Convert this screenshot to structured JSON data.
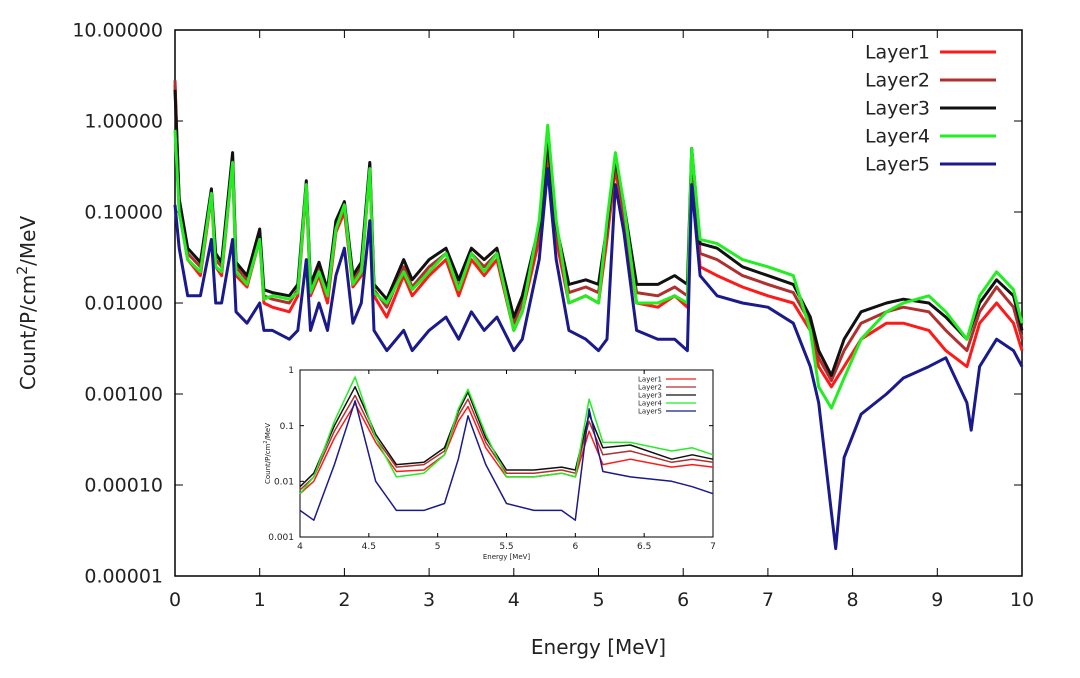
{
  "chart_data": [
    {
      "type": "line",
      "xlabel": "Energy [MeV]",
      "ylabel_main": "Count/P/cm",
      "ylabel_sup": "2",
      "ylabel_tail": "/MeV",
      "xlim": [
        0,
        10
      ],
      "ylim": [
        1e-05,
        10
      ],
      "yscale": "log",
      "xticks": [
        "0",
        "1",
        "2",
        "3",
        "4",
        "5",
        "6",
        "7",
        "8",
        "9",
        "10"
      ],
      "yticks": [
        "0.00001",
        "0.00010",
        "0.00100",
        "0.01000",
        "0.10000",
        "1.00000",
        "10.00000"
      ],
      "legend_position": "top-right",
      "grid": false,
      "series": [
        {
          "name": "Layer1",
          "color": "#ff1a1a",
          "x": [
            0,
            0.05,
            0.15,
            0.3,
            0.43,
            0.48,
            0.55,
            0.68,
            0.72,
            0.85,
            1.0,
            1.05,
            1.15,
            1.35,
            1.45,
            1.55,
            1.6,
            1.7,
            1.8,
            1.9,
            2.0,
            2.1,
            2.2,
            2.3,
            2.35,
            2.5,
            2.7,
            2.8,
            3.0,
            3.2,
            3.35,
            3.5,
            3.65,
            3.8,
            4.0,
            4.1,
            4.3,
            4.4,
            4.5,
            4.65,
            4.85,
            5.0,
            5.1,
            5.2,
            5.3,
            5.45,
            5.7,
            5.9,
            6.05,
            6.1,
            6.2,
            6.4,
            6.7,
            7.0,
            7.3,
            7.5,
            7.6,
            7.75,
            7.9,
            8.1,
            8.4,
            8.6,
            8.9,
            9.1,
            9.35,
            9.5,
            9.7,
            9.9,
            10.0
          ],
          "y": [
            2.5,
            0.1,
            0.03,
            0.02,
            0.15,
            0.025,
            0.02,
            0.35,
            0.02,
            0.015,
            0.05,
            0.01,
            0.009,
            0.008,
            0.012,
            0.18,
            0.012,
            0.02,
            0.01,
            0.06,
            0.1,
            0.015,
            0.02,
            0.3,
            0.012,
            0.007,
            0.02,
            0.012,
            0.02,
            0.03,
            0.012,
            0.03,
            0.02,
            0.03,
            0.005,
            0.008,
            0.05,
            0.45,
            0.05,
            0.01,
            0.012,
            0.01,
            0.05,
            0.3,
            0.08,
            0.01,
            0.009,
            0.012,
            0.009,
            0.3,
            0.025,
            0.02,
            0.015,
            0.012,
            0.01,
            0.005,
            0.002,
            0.0012,
            0.002,
            0.004,
            0.006,
            0.006,
            0.005,
            0.003,
            0.002,
            0.006,
            0.01,
            0.006,
            0.003
          ]
        },
        {
          "name": "Layer2",
          "color": "#b03030",
          "x": [
            0,
            0.05,
            0.15,
            0.3,
            0.43,
            0.48,
            0.55,
            0.68,
            0.72,
            0.85,
            1.0,
            1.05,
            1.15,
            1.35,
            1.45,
            1.55,
            1.6,
            1.7,
            1.8,
            1.9,
            2.0,
            2.1,
            2.2,
            2.3,
            2.35,
            2.5,
            2.7,
            2.8,
            3.0,
            3.2,
            3.35,
            3.5,
            3.65,
            3.8,
            4.0,
            4.1,
            4.3,
            4.4,
            4.5,
            4.65,
            4.85,
            5.0,
            5.1,
            5.2,
            5.3,
            5.45,
            5.7,
            5.9,
            6.05,
            6.1,
            6.2,
            6.4,
            6.7,
            7.0,
            7.3,
            7.5,
            7.6,
            7.75,
            7.9,
            8.1,
            8.4,
            8.6,
            8.9,
            9.1,
            9.35,
            9.5,
            9.7,
            9.9,
            10.0
          ],
          "y": [
            2.8,
            0.12,
            0.035,
            0.025,
            0.17,
            0.03,
            0.025,
            0.4,
            0.025,
            0.018,
            0.06,
            0.012,
            0.011,
            0.01,
            0.014,
            0.2,
            0.014,
            0.025,
            0.012,
            0.07,
            0.12,
            0.018,
            0.025,
            0.33,
            0.014,
            0.009,
            0.025,
            0.015,
            0.025,
            0.035,
            0.015,
            0.035,
            0.025,
            0.035,
            0.006,
            0.01,
            0.06,
            0.55,
            0.06,
            0.013,
            0.015,
            0.013,
            0.06,
            0.35,
            0.1,
            0.013,
            0.012,
            0.015,
            0.012,
            0.4,
            0.035,
            0.03,
            0.02,
            0.016,
            0.013,
            0.006,
            0.0025,
            0.0014,
            0.003,
            0.006,
            0.008,
            0.009,
            0.008,
            0.005,
            0.003,
            0.008,
            0.015,
            0.009,
            0.004
          ]
        },
        {
          "name": "Layer3",
          "color": "#111111",
          "x": [
            0,
            0.05,
            0.15,
            0.3,
            0.43,
            0.48,
            0.55,
            0.68,
            0.72,
            0.85,
            1.0,
            1.05,
            1.15,
            1.35,
            1.45,
            1.55,
            1.6,
            1.7,
            1.8,
            1.9,
            2.0,
            2.1,
            2.2,
            2.3,
            2.35,
            2.5,
            2.7,
            2.8,
            3.0,
            3.2,
            3.35,
            3.5,
            3.65,
            3.8,
            4.0,
            4.1,
            4.3,
            4.4,
            4.5,
            4.65,
            4.85,
            5.0,
            5.1,
            5.2,
            5.3,
            5.45,
            5.7,
            5.9,
            6.05,
            6.1,
            6.2,
            6.4,
            6.7,
            7.0,
            7.3,
            7.5,
            7.6,
            7.75,
            7.9,
            8.1,
            8.4,
            8.6,
            8.9,
            9.1,
            9.35,
            9.5,
            9.7,
            9.9,
            10.0
          ],
          "y": [
            2.2,
            0.14,
            0.04,
            0.028,
            0.18,
            0.035,
            0.028,
            0.45,
            0.028,
            0.02,
            0.065,
            0.014,
            0.013,
            0.012,
            0.016,
            0.22,
            0.016,
            0.028,
            0.014,
            0.08,
            0.13,
            0.02,
            0.028,
            0.35,
            0.016,
            0.011,
            0.03,
            0.018,
            0.03,
            0.04,
            0.018,
            0.04,
            0.03,
            0.04,
            0.007,
            0.012,
            0.07,
            0.65,
            0.07,
            0.016,
            0.018,
            0.016,
            0.07,
            0.4,
            0.12,
            0.016,
            0.016,
            0.02,
            0.016,
            0.5,
            0.045,
            0.04,
            0.025,
            0.02,
            0.016,
            0.007,
            0.003,
            0.0016,
            0.004,
            0.008,
            0.01,
            0.011,
            0.01,
            0.007,
            0.004,
            0.01,
            0.018,
            0.012,
            0.005
          ]
        },
        {
          "name": "Layer4",
          "color": "#22ee22",
          "x": [
            0,
            0.05,
            0.15,
            0.3,
            0.43,
            0.48,
            0.55,
            0.68,
            0.72,
            0.85,
            1.0,
            1.05,
            1.15,
            1.35,
            1.45,
            1.55,
            1.6,
            1.7,
            1.8,
            1.9,
            2.0,
            2.1,
            2.2,
            2.3,
            2.35,
            2.5,
            2.7,
            2.8,
            3.0,
            3.2,
            3.35,
            3.5,
            3.65,
            3.8,
            4.0,
            4.1,
            4.3,
            4.4,
            4.5,
            4.65,
            4.85,
            5.0,
            5.1,
            5.2,
            5.3,
            5.45,
            5.7,
            5.9,
            6.05,
            6.1,
            6.2,
            6.4,
            6.7,
            7.0,
            7.3,
            7.5,
            7.6,
            7.75,
            7.9,
            8.1,
            8.4,
            8.6,
            8.9,
            9.1,
            9.35,
            9.5,
            9.7,
            9.9,
            10.0
          ],
          "y": [
            0.8,
            0.1,
            0.03,
            0.022,
            0.16,
            0.025,
            0.022,
            0.35,
            0.022,
            0.016,
            0.05,
            0.011,
            0.012,
            0.011,
            0.013,
            0.2,
            0.013,
            0.022,
            0.012,
            0.065,
            0.12,
            0.016,
            0.022,
            0.3,
            0.013,
            0.01,
            0.022,
            0.014,
            0.022,
            0.035,
            0.014,
            0.035,
            0.022,
            0.035,
            0.005,
            0.008,
            0.08,
            0.9,
            0.08,
            0.01,
            0.012,
            0.01,
            0.08,
            0.45,
            0.12,
            0.01,
            0.01,
            0.012,
            0.01,
            0.5,
            0.05,
            0.045,
            0.03,
            0.025,
            0.02,
            0.005,
            0.0012,
            0.0007,
            0.0015,
            0.004,
            0.008,
            0.01,
            0.012,
            0.008,
            0.004,
            0.012,
            0.022,
            0.014,
            0.006
          ]
        },
        {
          "name": "Layer5",
          "color": "#1a1a8c",
          "x": [
            0,
            0.05,
            0.15,
            0.3,
            0.43,
            0.48,
            0.55,
            0.68,
            0.72,
            0.85,
            1.0,
            1.05,
            1.15,
            1.35,
            1.45,
            1.55,
            1.6,
            1.7,
            1.8,
            1.9,
            2.0,
            2.1,
            2.2,
            2.3,
            2.35,
            2.5,
            2.7,
            2.8,
            3.0,
            3.2,
            3.35,
            3.5,
            3.65,
            3.8,
            4.0,
            4.1,
            4.3,
            4.4,
            4.5,
            4.65,
            4.85,
            5.0,
            5.1,
            5.2,
            5.3,
            5.45,
            5.7,
            5.9,
            6.05,
            6.1,
            6.2,
            6.4,
            6.7,
            7.0,
            7.3,
            7.5,
            7.6,
            7.75,
            7.8,
            7.9,
            8.1,
            8.4,
            8.6,
            8.9,
            9.1,
            9.35,
            9.4,
            9.5,
            9.7,
            9.9,
            10.0
          ],
          "y": [
            0.12,
            0.04,
            0.012,
            0.012,
            0.05,
            0.01,
            0.01,
            0.05,
            0.008,
            0.006,
            0.01,
            0.005,
            0.005,
            0.004,
            0.005,
            0.03,
            0.005,
            0.01,
            0.005,
            0.02,
            0.04,
            0.006,
            0.01,
            0.08,
            0.005,
            0.003,
            0.005,
            0.003,
            0.005,
            0.007,
            0.004,
            0.008,
            0.005,
            0.007,
            0.003,
            0.004,
            0.03,
            0.3,
            0.03,
            0.005,
            0.004,
            0.003,
            0.004,
            0.2,
            0.06,
            0.005,
            0.004,
            0.004,
            0.003,
            0.2,
            0.02,
            0.012,
            0.01,
            0.009,
            0.006,
            0.002,
            0.0008,
            5e-05,
            2e-05,
            0.0002,
            0.0006,
            0.001,
            0.0015,
            0.002,
            0.0025,
            0.0008,
            0.0004,
            0.002,
            0.004,
            0.003,
            0.002
          ]
        }
      ]
    },
    {
      "type": "line",
      "xlabel": "Energy [MeV]",
      "ylabel_main": "Count/P/cm",
      "ylabel_sup": "2",
      "ylabel_tail": "/MeV",
      "xlim": [
        4,
        7
      ],
      "ylim": [
        0.001,
        1
      ],
      "yscale": "log",
      "xticks": [
        "4",
        "4.5",
        "5",
        "5.5",
        "6",
        "6.5",
        "7"
      ],
      "yticks": [
        "0.001",
        "0.01",
        "0.1",
        "1"
      ],
      "legend_position": "top-right",
      "grid": false,
      "series": [
        {
          "name": "Layer1",
          "color": "#ff1a1a",
          "x": [
            4.0,
            4.1,
            4.25,
            4.4,
            4.55,
            4.7,
            4.9,
            5.05,
            5.15,
            5.22,
            5.35,
            5.5,
            5.7,
            5.9,
            6.0,
            6.1,
            6.2,
            6.4,
            6.7,
            6.85,
            7.0
          ],
          "y": [
            0.006,
            0.01,
            0.06,
            0.25,
            0.05,
            0.015,
            0.016,
            0.03,
            0.12,
            0.22,
            0.04,
            0.012,
            0.012,
            0.014,
            0.012,
            0.08,
            0.02,
            0.025,
            0.018,
            0.02,
            0.018
          ]
        },
        {
          "name": "Layer2",
          "color": "#b03030",
          "x": [
            4.0,
            4.1,
            4.25,
            4.4,
            4.55,
            4.7,
            4.9,
            5.05,
            5.15,
            5.22,
            5.35,
            5.5,
            5.7,
            5.9,
            6.0,
            6.1,
            6.2,
            6.4,
            6.7,
            6.85,
            7.0
          ],
          "y": [
            0.007,
            0.012,
            0.08,
            0.35,
            0.06,
            0.018,
            0.02,
            0.035,
            0.15,
            0.3,
            0.05,
            0.014,
            0.014,
            0.016,
            0.014,
            0.12,
            0.03,
            0.035,
            0.022,
            0.025,
            0.022
          ]
        },
        {
          "name": "Layer3",
          "color": "#111111",
          "x": [
            4.0,
            4.1,
            4.25,
            4.4,
            4.55,
            4.7,
            4.9,
            5.05,
            5.15,
            5.22,
            5.35,
            5.5,
            5.7,
            5.9,
            6.0,
            6.1,
            6.2,
            6.4,
            6.7,
            6.85,
            7.0
          ],
          "y": [
            0.008,
            0.014,
            0.1,
            0.5,
            0.07,
            0.02,
            0.022,
            0.04,
            0.18,
            0.4,
            0.06,
            0.016,
            0.016,
            0.018,
            0.016,
            0.16,
            0.04,
            0.045,
            0.025,
            0.03,
            0.025
          ]
        },
        {
          "name": "Layer4",
          "color": "#22ee22",
          "x": [
            4.0,
            4.1,
            4.25,
            4.4,
            4.55,
            4.7,
            4.9,
            5.05,
            5.15,
            5.22,
            5.35,
            5.5,
            5.7,
            5.9,
            6.0,
            6.1,
            6.2,
            6.4,
            6.7,
            6.85,
            7.0
          ],
          "y": [
            0.006,
            0.012,
            0.12,
            0.75,
            0.06,
            0.012,
            0.014,
            0.03,
            0.2,
            0.45,
            0.07,
            0.012,
            0.012,
            0.014,
            0.012,
            0.3,
            0.05,
            0.05,
            0.035,
            0.04,
            0.03
          ]
        },
        {
          "name": "Layer5",
          "color": "#1a1a8c",
          "x": [
            4.0,
            4.1,
            4.25,
            4.4,
            4.55,
            4.7,
            4.9,
            5.05,
            5.15,
            5.22,
            5.35,
            5.5,
            5.7,
            5.9,
            6.0,
            6.1,
            6.2,
            6.4,
            6.7,
            6.85,
            7.0
          ],
          "y": [
            0.003,
            0.002,
            0.02,
            0.28,
            0.01,
            0.003,
            0.003,
            0.004,
            0.025,
            0.15,
            0.02,
            0.004,
            0.003,
            0.003,
            0.002,
            0.2,
            0.015,
            0.012,
            0.01,
            0.008,
            0.006
          ]
        }
      ]
    }
  ]
}
